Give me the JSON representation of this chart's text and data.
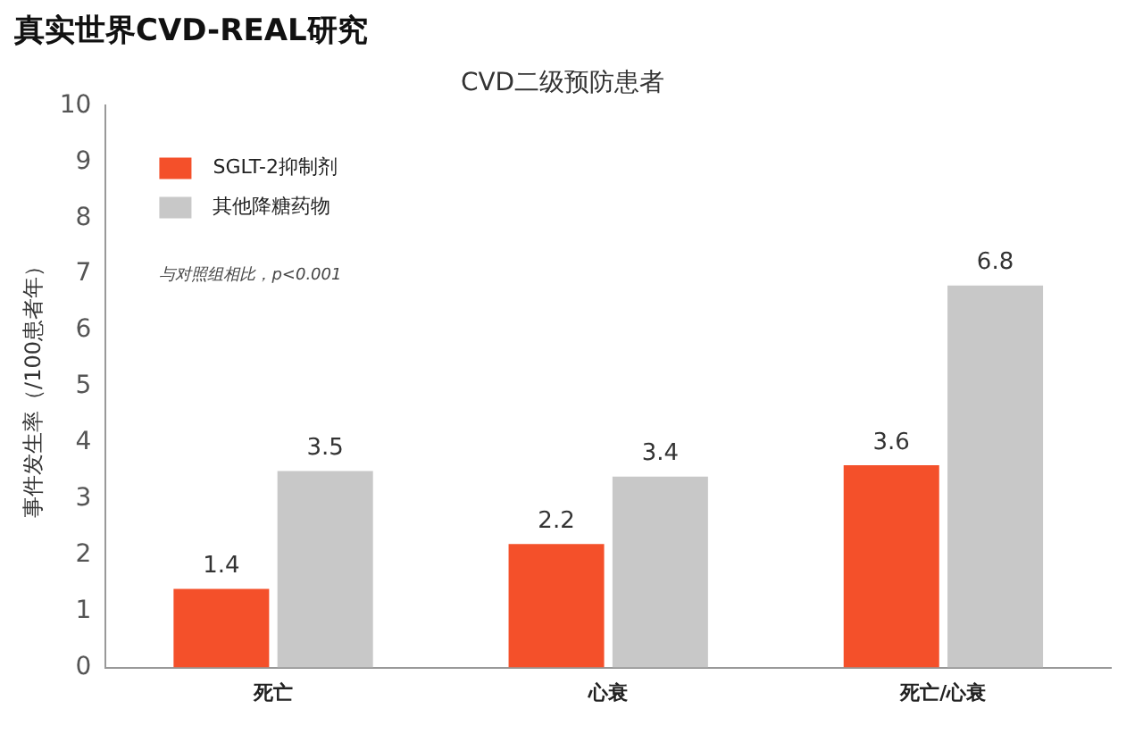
{
  "chart_data": {
    "type": "bar",
    "title": "真实世界CVD-REAL研究",
    "subtitle": "CVD二级预防患者",
    "ylabel": "事件发生率（/100患者年）",
    "categories": [
      "死亡",
      "心衰",
      "死亡/心衰"
    ],
    "series": [
      {
        "name": "SGLT-2抑制剂",
        "color": "#f4502a",
        "values": [
          1.4,
          2.2,
          3.6
        ]
      },
      {
        "name": "其他降糖药物",
        "color": "#c8c8c8",
        "values": [
          3.5,
          3.4,
          6.8
        ]
      }
    ],
    "ylim": [
      0,
      10
    ],
    "yticks": [
      0,
      1,
      2,
      3,
      4,
      5,
      6,
      7,
      8,
      9,
      10
    ],
    "grid": false,
    "legend": "top left",
    "data_labels": true,
    "annotations": [
      "与对照组相比，p<0.001"
    ]
  }
}
